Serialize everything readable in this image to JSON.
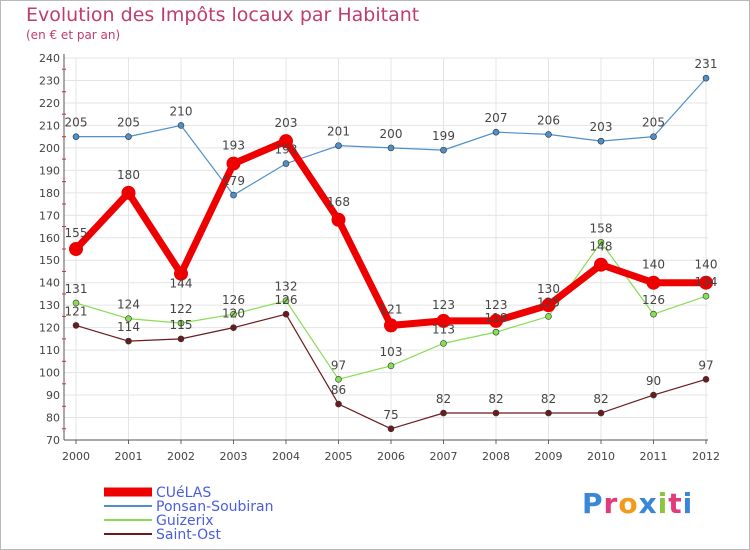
{
  "chart_data": {
    "type": "line",
    "title": "Evolution des Impôts locaux par Habitant",
    "subtitle": "(en € et par an)",
    "xlabel": "",
    "ylabel": "",
    "x": [
      2000,
      2001,
      2002,
      2003,
      2004,
      2005,
      2006,
      2007,
      2008,
      2009,
      2010,
      2011,
      2012
    ],
    "ylim": [
      70,
      240
    ],
    "ytick_step": 10,
    "grid": true,
    "legend_position": "bottom-left",
    "series": [
      {
        "name": "CUéLAS",
        "color": "#ee0000",
        "values": [
          155,
          180,
          144,
          193,
          203,
          168,
          121,
          123,
          123,
          130,
          148,
          140,
          140
        ]
      },
      {
        "name": "Ponsan-Soubiran",
        "color": "#4f8fcb",
        "values": [
          205,
          205,
          210,
          179,
          193,
          201,
          200,
          199,
          207,
          206,
          203,
          205,
          231
        ]
      },
      {
        "name": "Guizerix",
        "color": "#88dd55",
        "values": [
          131,
          124,
          122,
          126,
          132,
          97,
          103,
          113,
          118,
          125,
          158,
          126,
          134
        ]
      },
      {
        "name": "Saint-Ost",
        "color": "#6b1b1b",
        "values": [
          121,
          114,
          115,
          120,
          126,
          86,
          75,
          82,
          82,
          82,
          82,
          90,
          97
        ]
      }
    ]
  },
  "brand": {
    "letters": [
      "P",
      "r",
      "o",
      "x",
      "i",
      "t",
      "i"
    ],
    "colors": [
      "#3a86d9",
      "#e23a7a",
      "#f39a1a",
      "#3a86d9",
      "#8cc63f",
      "#e23a7a",
      "#3a86d9"
    ]
  }
}
